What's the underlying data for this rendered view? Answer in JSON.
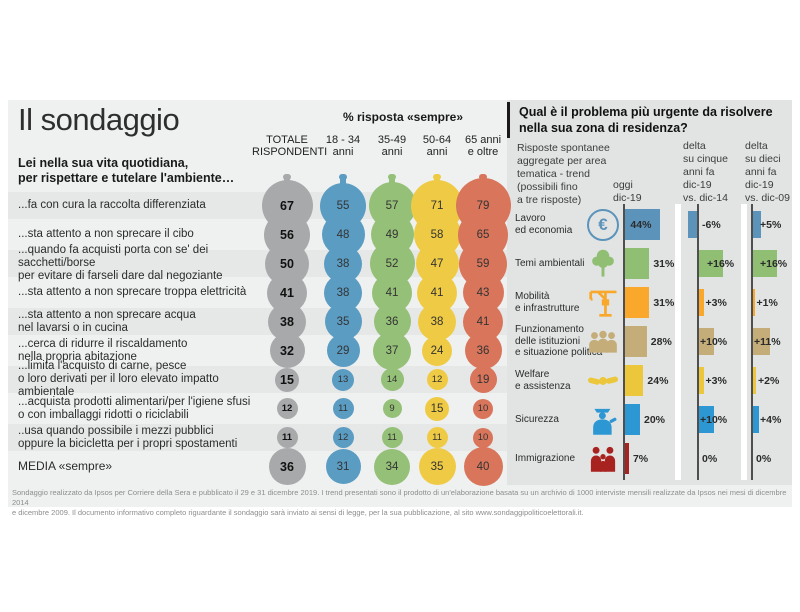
{
  "left_panel": {
    "title": "Il sondaggio",
    "subtitle": "Lei nella sua vita quotidiana,\nper rispettare e tutelare l'ambiente…",
    "pct_header": "% risposta «sempre»",
    "columns": [
      {
        "label": "TOTALE\nRISPONDENTI",
        "color": "#a7a9ab"
      },
      {
        "label": "18 - 34\nanni",
        "color": "#5b9cc3"
      },
      {
        "label": "35-49\nanni",
        "color": "#95c077"
      },
      {
        "label": "50-64\nanni",
        "color": "#efcb45"
      },
      {
        "label": "65 anni\ne oltre",
        "color": "#d8755b"
      }
    ],
    "rows": [
      {
        "label": "...fa con cura la raccolta differenziata",
        "values": [
          67,
          55,
          57,
          71,
          79
        ]
      },
      {
        "label": "...sta attento a non sprecare il cibo",
        "values": [
          56,
          48,
          49,
          58,
          65
        ]
      },
      {
        "label": "...quando fa acquisti porta con se' dei sacchetti/borse\nper evitare di farseli dare dal negoziante",
        "values": [
          50,
          38,
          52,
          47,
          59
        ]
      },
      {
        "label": "...sta attento a non sprecare troppa elettricità",
        "values": [
          41,
          38,
          41,
          41,
          43
        ]
      },
      {
        "label": "...sta attento a non sprecare acqua\nnel lavarsi o in cucina",
        "values": [
          38,
          35,
          36,
          38,
          41
        ]
      },
      {
        "label": "...cerca di ridurre il riscaldamento\nnella propria abitazione",
        "values": [
          32,
          29,
          37,
          24,
          36
        ]
      },
      {
        "label": "...limita l'acquisto di carne, pesce\no loro derivati per il loro elevato impatto ambientale",
        "values": [
          15,
          13,
          14,
          12,
          19
        ]
      },
      {
        "label": "...acquista prodotti alimentari/per l'igiene sfusi\no con imballaggi ridotti o riciclabili",
        "values": [
          12,
          11,
          9,
          15,
          10
        ]
      },
      {
        "label": "..usa quando possibile i mezzi pubblici\noppure la bicicletta per i propri spostamenti",
        "values": [
          11,
          12,
          11,
          11,
          10
        ]
      },
      {
        "label": "MEDIA «sempre»",
        "values": [
          36,
          31,
          34,
          35,
          40
        ],
        "is_media": true
      }
    ]
  },
  "right_panel": {
    "title": "Qual è il problema più urgente da risolvere\nnella sua zona di residenza?",
    "subtitle": "Risposte spontanee\naggregate per area\ntematica - trend\n(possibili fino\na tre risposte)",
    "col_headers": {
      "today": "oggi\ndic-19",
      "delta5": "delta\nsu cinque\nanni fa\ndic-19\nvs. dic-14",
      "delta10": "delta\nsu dieci\nanni fa\ndic-19\nvs. dic-09"
    },
    "rows": [
      {
        "label": "Lavoro\ned economia",
        "icon": "euro-icon",
        "color": "#5b93bb",
        "today": 44,
        "delta5": -6,
        "delta10": 5,
        "today_label": "44%",
        "delta5_label": "-6%",
        "delta10_label": "+5%"
      },
      {
        "label": "Temi ambientali",
        "icon": "tree-icon",
        "color": "#90bf74",
        "today": 31,
        "delta5": 16,
        "delta10": 16,
        "today_label": "31%",
        "delta5_label": "+16%",
        "delta10_label": "+16%"
      },
      {
        "label": "Mobilità\ne infrastrutture",
        "icon": "crane-icon",
        "color": "#f9a82b",
        "today": 31,
        "delta5": 3,
        "delta10": 1,
        "today_label": "31%",
        "delta5_label": "+3%",
        "delta10_label": "+1%"
      },
      {
        "label": "Funzionamento\ndelle istituzioni\ne situazione politica",
        "icon": "people-group-icon",
        "color": "#c5ad79",
        "today": 28,
        "delta5": 10,
        "delta10": 11,
        "today_label": "28%",
        "delta5_label": "+10%",
        "delta10_label": "+11%"
      },
      {
        "label": "Welfare\ne assistenza",
        "icon": "handshake-icon",
        "color": "#ecc73b",
        "today": 24,
        "delta5": 3,
        "delta10": 2,
        "today_label": "24%",
        "delta5_label": "+3%",
        "delta10_label": "+2%"
      },
      {
        "label": "Sicurezza",
        "icon": "police-officer-icon",
        "color": "#2d97d3",
        "today": 20,
        "delta5": 10,
        "delta10": 4,
        "today_label": "20%",
        "delta5_label": "+10%",
        "delta10_label": "+4%"
      },
      {
        "label": "Immigrazione",
        "icon": "family-icon",
        "color": "#a82220",
        "today": 7,
        "delta5": 0,
        "delta10": 0,
        "today_label": "7%",
        "delta5_label": "0%",
        "delta10_label": "0%"
      }
    ]
  },
  "footer": {
    "line1": "Sondaggio realizzato da Ipsos per Corriere della Sera e pubblicato il 29 e 31 dicembre 2019. I trend presentati sono il prodotto di un'elaborazione basata su un archivio di 1000 interviste mensili realizzate da Ipsos nei mesi di dicembre 2014",
    "line2": "e dicembre 2009. Il documento informativo completo riguardante il sondaggio sarà inviato ai sensi di legge, per la sua pubblicazione, al sito www.sondaggipoliticoelettorali.it."
  },
  "chart_data": [
    {
      "type": "table",
      "title": "% risposta «sempre»",
      "subtitle": "Lei nella sua vita quotidiana, per rispettare e tutelare l'ambiente…",
      "columns": [
        "Totale rispondenti",
        "18-34 anni",
        "35-49 anni",
        "50-64 anni",
        "65 anni e oltre"
      ],
      "rows": [
        {
          "label": "fa con cura la raccolta differenziata",
          "values": [
            67,
            55,
            57,
            71,
            79
          ]
        },
        {
          "label": "sta attento a non sprecare il cibo",
          "values": [
            56,
            48,
            49,
            58,
            65
          ]
        },
        {
          "label": "quando fa acquisti porta con se' dei sacchetti/borse per evitare di farseli dare dal negoziante",
          "values": [
            50,
            38,
            52,
            47,
            59
          ]
        },
        {
          "label": "sta attento a non sprecare troppa elettricità",
          "values": [
            41,
            38,
            41,
            41,
            43
          ]
        },
        {
          "label": "sta attento a non sprecare acqua nel lavarsi o in cucina",
          "values": [
            38,
            35,
            36,
            38,
            41
          ]
        },
        {
          "label": "cerca di ridurre il riscaldamento nella propria abitazione",
          "values": [
            32,
            29,
            37,
            24,
            36
          ]
        },
        {
          "label": "limita l'acquisto di carne, pesce o loro derivati per il loro elevato impatto ambientale",
          "values": [
            15,
            13,
            14,
            12,
            19
          ]
        },
        {
          "label": "acquista prodotti alimentari/per l'igiene sfusi o con imballaggi ridotti o riciclabili",
          "values": [
            12,
            11,
            9,
            15,
            10
          ]
        },
        {
          "label": "usa quando possibile i mezzi pubblici oppure la bicicletta per i propri spostamenti",
          "values": [
            11,
            12,
            11,
            11,
            10
          ]
        },
        {
          "label": "MEDIA «sempre»",
          "values": [
            36,
            31,
            34,
            35,
            40
          ]
        }
      ],
      "note": "bubble size proportional to value"
    },
    {
      "type": "bar",
      "title": "Qual è il problema più urgente da risolvere nella sua zona di residenza?",
      "subtitle": "Risposte spontanee aggregate per area tematica - trend (possibili fino a tre risposte)",
      "categories": [
        "Lavoro ed economia",
        "Temi ambientali",
        "Mobilità e infrastrutture",
        "Funzionamento delle istituzioni e situazione politica",
        "Welfare e assistenza",
        "Sicurezza",
        "Immigrazione"
      ],
      "series": [
        {
          "name": "oggi dic-19 (%)",
          "values": [
            44,
            31,
            31,
            28,
            24,
            20,
            7
          ]
        },
        {
          "name": "delta su cinque anni fa dic-19 vs. dic-14",
          "values": [
            -6,
            16,
            3,
            10,
            3,
            10,
            0
          ]
        },
        {
          "name": "delta su dieci anni fa dic-19 vs. dic-09",
          "values": [
            5,
            16,
            1,
            11,
            2,
            4,
            0
          ]
        }
      ],
      "orientation": "horizontal",
      "legend_position": "top"
    }
  ]
}
